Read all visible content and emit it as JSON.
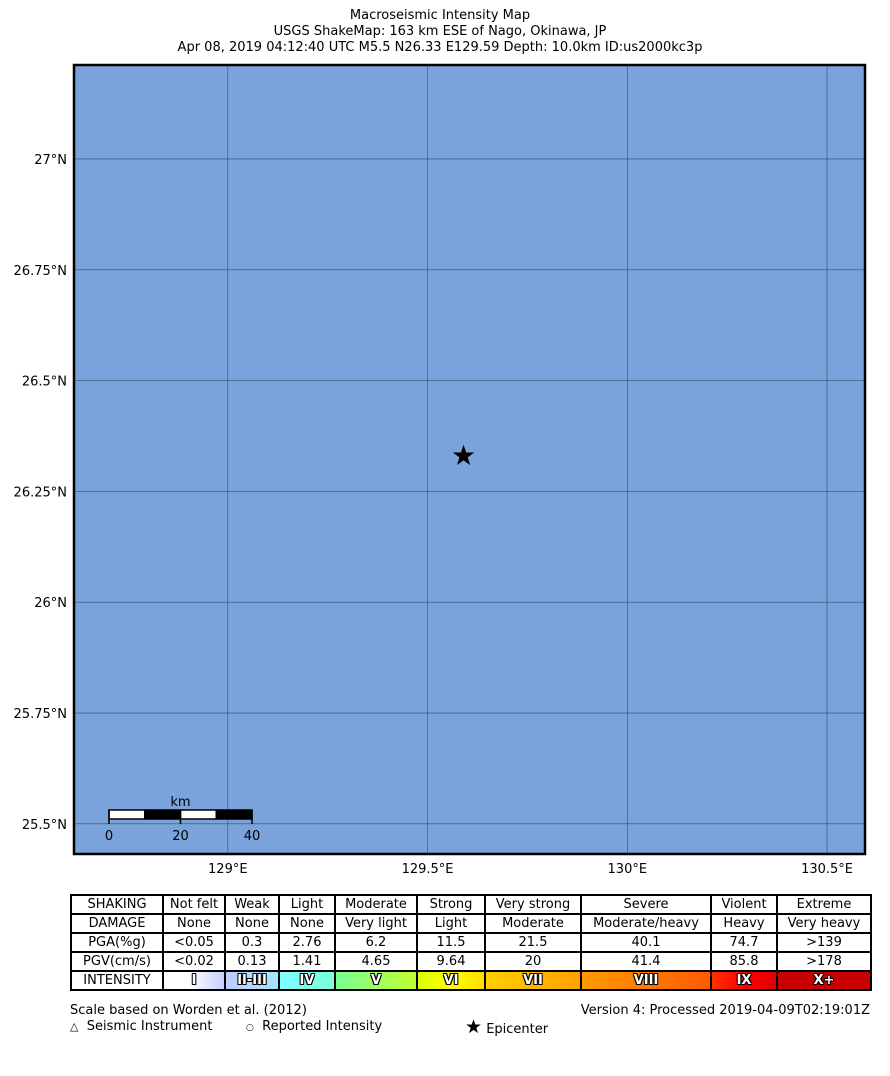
{
  "title": {
    "line1": "Macroseismic Intensity Map",
    "line2": "USGS ShakeMap: 163 km ESE of Nago, Okinawa, JP",
    "line3": "Apr 08, 2019 04:12:40 UTC M5.5 N26.33 E129.59 Depth: 10.0km ID:us2000kc3p"
  },
  "map": {
    "lon_range": [
      128.615,
      130.595
    ],
    "lat_range": [
      25.432,
      27.212
    ],
    "ocean_color": "#7aa2db",
    "lon_ticks": [
      {
        "v": 129,
        "label": "129°E"
      },
      {
        "v": 129.5,
        "label": "129.5°E"
      },
      {
        "v": 130,
        "label": "130°E"
      },
      {
        "v": 130.5,
        "label": "130.5°E"
      }
    ],
    "lat_ticks": [
      {
        "v": 27,
        "label": "27°N"
      },
      {
        "v": 26.75,
        "label": "26.75°N"
      },
      {
        "v": 26.5,
        "label": "26.5°N"
      },
      {
        "v": 26.25,
        "label": "26.25°N"
      },
      {
        "v": 26,
        "label": "26°N"
      },
      {
        "v": 25.75,
        "label": "25.75°N"
      },
      {
        "v": 25.5,
        "label": "25.5°N"
      }
    ],
    "epicenter": {
      "lon": 129.59,
      "lat": 26.33,
      "icon": "star-icon"
    },
    "scalebar": {
      "unit": "km",
      "labels": [
        "0",
        "20",
        "40"
      ]
    }
  },
  "legend": {
    "rows": [
      [
        "SHAKING",
        "Not felt",
        "Weak",
        "Light",
        "Moderate",
        "Strong",
        "Very strong",
        "Severe",
        "Violent",
        "Extreme"
      ],
      [
        "DAMAGE",
        "None",
        "None",
        "None",
        "Very light",
        "Light",
        "Moderate",
        "Moderate/heavy",
        "Heavy",
        "Very heavy"
      ],
      [
        "PGA(%g)",
        "<0.05",
        "0.3",
        "2.76",
        "6.2",
        "11.5",
        "21.5",
        "40.1",
        "74.7",
        ">139"
      ],
      [
        "PGV(cm/s)",
        "<0.02",
        "0.13",
        "1.41",
        "4.65",
        "9.64",
        "20",
        "41.4",
        "85.8",
        ">178"
      ]
    ],
    "intensity_label": "INTENSITY",
    "intensity": [
      {
        "l": "I",
        "c": "linear-gradient(90deg,#fff 40%,#c8d0ff)"
      },
      {
        "l": "II-III",
        "c": "linear-gradient(90deg,#bfccff,#a0e6ff)"
      },
      {
        "l": "IV",
        "c": "linear-gradient(90deg,#80ffff,#7affd7)"
      },
      {
        "l": "V",
        "c": "linear-gradient(90deg,#7aff93,#bfff30)"
      },
      {
        "l": "VI",
        "c": "linear-gradient(90deg,#d8ff00,#ffff00,#ffdd00)"
      },
      {
        "l": "VII",
        "c": "linear-gradient(90deg,#ffd000,#ffa000)"
      },
      {
        "l": "VIII",
        "c": "linear-gradient(90deg,#ff9a00,#ff5a00)"
      },
      {
        "l": "IX",
        "c": "linear-gradient(90deg,#ff3000,#ff0000,#e00000)"
      },
      {
        "l": "X+",
        "c": "#c80000"
      }
    ]
  },
  "footer": {
    "scale_note": "Scale based on Worden et al. (2012)",
    "version": "Version 4: Processed 2019-04-09T02:19:01Z",
    "instrument": "Seismic Instrument",
    "reported": "Reported Intensity",
    "epicenter": "Epicenter"
  }
}
